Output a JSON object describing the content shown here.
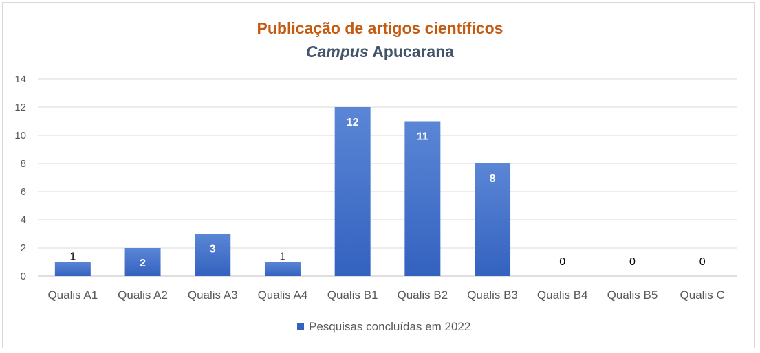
{
  "chart_data": {
    "type": "bar",
    "title": "Publicação de artigos científicos",
    "subtitle_italic": "Campus",
    "subtitle_rest": " Apucarana",
    "categories": [
      "Qualis A1",
      "Qualis A2",
      "Qualis A3",
      "Qualis A4",
      "Qualis B1",
      "Qualis B2",
      "Qualis B3",
      "Qualis B4",
      "Qualis B5",
      "Qualis C"
    ],
    "series": [
      {
        "name": "Pesquisas concluídas em 2022",
        "values": [
          1,
          2,
          3,
          1,
          12,
          11,
          8,
          0,
          0,
          0
        ]
      }
    ],
    "ylim": [
      0,
      14
    ],
    "yticks": [
      0,
      2,
      4,
      6,
      8,
      10,
      12,
      14
    ],
    "grid": true,
    "legend_position": "bottom",
    "colors": {
      "bar_top": "#5b86d6",
      "bar_bottom": "#3362bf",
      "title": "#c55a11",
      "subtitle": "#44546a",
      "grid": "#d9d9d9"
    }
  }
}
